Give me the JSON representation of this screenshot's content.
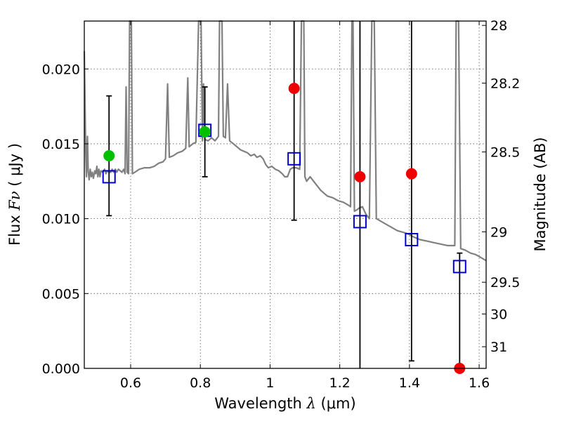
{
  "chart_data": {
    "type": "scatter",
    "title": "",
    "xlabel": {
      "prefix": "Wavelength  ",
      "symbol": "λ",
      "unit": " (μm)"
    },
    "ylabel": {
      "prefix": "Flux  ",
      "symbol": "Fν",
      "unit": "  ( μJy )"
    },
    "y2label": "Magnitude (AB)",
    "xlim": [
      0.467,
      1.62
    ],
    "ylim": [
      0.0,
      0.0232
    ],
    "grid": true,
    "x_ticks": [
      {
        "value": 0.6,
        "label": "0.6"
      },
      {
        "value": 0.8,
        "label": "0.8"
      },
      {
        "value": 1.0,
        "label": "1"
      },
      {
        "value": 1.2,
        "label": "1.2"
      },
      {
        "value": 1.4,
        "label": "1.4"
      },
      {
        "value": 1.6,
        "label": "1.6"
      }
    ],
    "y_ticks": [
      {
        "value": 0.0,
        "label": "0.000"
      },
      {
        "value": 0.005,
        "label": "0.005"
      },
      {
        "value": 0.01,
        "label": "0.010"
      },
      {
        "value": 0.015,
        "label": "0.015"
      },
      {
        "value": 0.02,
        "label": "0.020"
      }
    ],
    "y2_ticks": [
      {
        "value": 28,
        "label": "28"
      },
      {
        "value": 28.2,
        "label": "28.2"
      },
      {
        "value": 28.5,
        "label": "28.5"
      },
      {
        "value": 29,
        "label": "29"
      },
      {
        "value": 29.5,
        "label": "29.5"
      },
      {
        "value": 30,
        "label": "30"
      },
      {
        "value": 31,
        "label": "31"
      }
    ],
    "model_spectrum": {
      "color": "#808080",
      "points": [
        [
          0.467,
          0.0212
        ],
        [
          0.471,
          0.0145
        ],
        [
          0.473,
          0.0128
        ],
        [
          0.476,
          0.0155
        ],
        [
          0.478,
          0.0132
        ],
        [
          0.481,
          0.0126
        ],
        [
          0.484,
          0.0133
        ],
        [
          0.487,
          0.0128
        ],
        [
          0.49,
          0.0131
        ],
        [
          0.493,
          0.0127
        ],
        [
          0.497,
          0.0132
        ],
        [
          0.5,
          0.013
        ],
        [
          0.503,
          0.0135
        ],
        [
          0.506,
          0.0128
        ],
        [
          0.509,
          0.0133
        ],
        [
          0.512,
          0.0128
        ],
        [
          0.515,
          0.0132
        ],
        [
          0.52,
          0.0131
        ],
        [
          0.525,
          0.0133
        ],
        [
          0.529,
          0.013
        ],
        [
          0.533,
          0.0132
        ],
        [
          0.538,
          0.0131
        ],
        [
          0.543,
          0.0131
        ],
        [
          0.547,
          0.0133
        ],
        [
          0.551,
          0.0131
        ],
        [
          0.556,
          0.0133
        ],
        [
          0.56,
          0.0131
        ],
        [
          0.565,
          0.0133
        ],
        [
          0.57,
          0.0132
        ],
        [
          0.575,
          0.0131
        ],
        [
          0.58,
          0.0133
        ],
        [
          0.584,
          0.013
        ],
        [
          0.587,
          0.0188
        ],
        [
          0.59,
          0.0131
        ],
        [
          0.594,
          0.013
        ],
        [
          0.597,
          0.0232
        ],
        [
          0.602,
          0.0232
        ],
        [
          0.605,
          0.013
        ],
        [
          0.612,
          0.0131
        ],
        [
          0.625,
          0.0133
        ],
        [
          0.64,
          0.0134
        ],
        [
          0.655,
          0.0134
        ],
        [
          0.668,
          0.0135
        ],
        [
          0.68,
          0.0137
        ],
        [
          0.693,
          0.0138
        ],
        [
          0.7,
          0.014
        ],
        [
          0.706,
          0.019
        ],
        [
          0.711,
          0.0141
        ],
        [
          0.722,
          0.0142
        ],
        [
          0.735,
          0.0144
        ],
        [
          0.748,
          0.0145
        ],
        [
          0.758,
          0.0147
        ],
        [
          0.764,
          0.0194
        ],
        [
          0.768,
          0.0148
        ],
        [
          0.778,
          0.015
        ],
        [
          0.787,
          0.0151
        ],
        [
          0.795,
          0.0232
        ],
        [
          0.802,
          0.0232
        ],
        [
          0.806,
          0.0152
        ],
        [
          0.809,
          0.019
        ],
        [
          0.813,
          0.0153
        ],
        [
          0.822,
          0.0152
        ],
        [
          0.832,
          0.0154
        ],
        [
          0.842,
          0.0152
        ],
        [
          0.852,
          0.0155
        ],
        [
          0.855,
          0.0232
        ],
        [
          0.862,
          0.0232
        ],
        [
          0.866,
          0.0155
        ],
        [
          0.872,
          0.0154
        ],
        [
          0.878,
          0.019
        ],
        [
          0.884,
          0.0152
        ],
        [
          0.895,
          0.015
        ],
        [
          0.905,
          0.0148
        ],
        [
          0.915,
          0.0146
        ],
        [
          0.925,
          0.0145
        ],
        [
          0.935,
          0.0144
        ],
        [
          0.945,
          0.0142
        ],
        [
          0.955,
          0.0143
        ],
        [
          0.962,
          0.0141
        ],
        [
          0.972,
          0.0142
        ],
        [
          0.98,
          0.014
        ],
        [
          0.988,
          0.0136
        ],
        [
          0.995,
          0.0134
        ],
        [
          1.005,
          0.0135
        ],
        [
          1.015,
          0.0133
        ],
        [
          1.025,
          0.0132
        ],
        [
          1.035,
          0.013
        ],
        [
          1.042,
          0.0128
        ],
        [
          1.05,
          0.0128
        ],
        [
          1.058,
          0.0133
        ],
        [
          1.065,
          0.0134
        ],
        [
          1.075,
          0.0134
        ],
        [
          1.085,
          0.0133
        ],
        [
          1.09,
          0.0232
        ],
        [
          1.097,
          0.0232
        ],
        [
          1.1,
          0.0128
        ],
        [
          1.105,
          0.0125
        ],
        [
          1.115,
          0.0128
        ],
        [
          1.125,
          0.0125
        ],
        [
          1.135,
          0.0122
        ],
        [
          1.145,
          0.0119
        ],
        [
          1.155,
          0.0117
        ],
        [
          1.165,
          0.0115
        ],
        [
          1.18,
          0.0114
        ],
        [
          1.195,
          0.0112
        ],
        [
          1.21,
          0.0111
        ],
        [
          1.225,
          0.0109
        ],
        [
          1.231,
          0.0108
        ],
        [
          1.235,
          0.0232
        ],
        [
          1.238,
          0.0232
        ],
        [
          1.242,
          0.0105
        ],
        [
          1.25,
          0.0106
        ],
        [
          1.255,
          0.0107
        ],
        [
          1.265,
          0.0108
        ],
        [
          1.275,
          0.0103
        ],
        [
          1.285,
          0.01
        ],
        [
          1.292,
          0.0232
        ],
        [
          1.299,
          0.0232
        ],
        [
          1.305,
          0.01
        ],
        [
          1.32,
          0.0098
        ],
        [
          1.335,
          0.0096
        ],
        [
          1.35,
          0.0094
        ],
        [
          1.365,
          0.0092
        ],
        [
          1.38,
          0.0091
        ],
        [
          1.395,
          0.009
        ],
        [
          1.41,
          0.0088
        ],
        [
          1.43,
          0.0086
        ],
        [
          1.45,
          0.0085
        ],
        [
          1.47,
          0.0084
        ],
        [
          1.49,
          0.0083
        ],
        [
          1.51,
          0.0082
        ],
        [
          1.53,
          0.0082
        ],
        [
          1.534,
          0.0232
        ],
        [
          1.541,
          0.0232
        ],
        [
          1.547,
          0.008
        ],
        [
          1.56,
          0.0079
        ],
        [
          1.575,
          0.0077
        ],
        [
          1.59,
          0.0076
        ],
        [
          1.605,
          0.0074
        ],
        [
          1.62,
          0.0072
        ]
      ]
    },
    "observed_flux": {
      "colors": {
        "detection": "#00c000",
        "non_detection": "#ee0000",
        "errorbar": "#000000"
      },
      "points": [
        {
          "x": 0.538,
          "y": 0.0142,
          "yerr_low": 0.0102,
          "yerr_high": 0.0182,
          "status": "detection",
          "show_errorbar": true
        },
        {
          "x": 0.813,
          "y": 0.0158,
          "yerr_low": 0.0128,
          "yerr_high": 0.0188,
          "status": "detection",
          "show_errorbar": true
        },
        {
          "x": 1.069,
          "y": 0.0187,
          "yerr_low": 0.0099,
          "yerr_high": 0.0232,
          "status": "non_detection",
          "show_errorbar": true
        },
        {
          "x": 1.258,
          "y": 0.0128,
          "yerr_low": 0.0,
          "yerr_high": 0.0232,
          "status": "non_detection",
          "show_errorbar": true
        },
        {
          "x": 1.406,
          "y": 0.013,
          "yerr_low": 0.0005,
          "yerr_high": 0.0232,
          "status": "non_detection",
          "show_errorbar": true
        },
        {
          "x": 1.544,
          "y": 0.0,
          "yerr_low": 0.0,
          "yerr_high": 0.0077,
          "status": "non_detection",
          "show_errorbar": true
        }
      ]
    },
    "model_flux": {
      "color": "#0000cc",
      "points": [
        {
          "x": 0.538,
          "y": 0.0128
        },
        {
          "x": 0.813,
          "y": 0.0159
        },
        {
          "x": 1.069,
          "y": 0.014
        },
        {
          "x": 1.258,
          "y": 0.0098
        },
        {
          "x": 1.406,
          "y": 0.0086
        },
        {
          "x": 1.544,
          "y": 0.0068
        }
      ]
    }
  }
}
